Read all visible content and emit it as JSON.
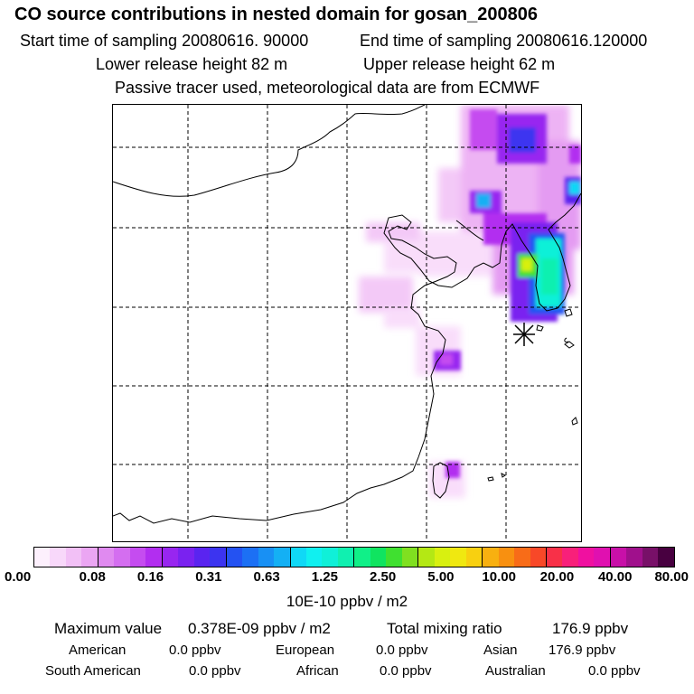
{
  "header": {
    "title": "CO  source contributions in nested domain for gosan_200806",
    "start_sampling": "Start time of sampling 20080616. 90000",
    "end_sampling": "End time of sampling 20080616.120000",
    "lower_release": "Lower release height   82 m",
    "upper_release": "Upper release height   62 m",
    "tracer_note": "Passive tracer used, meteorological data are from ECMWF"
  },
  "colorbar": {
    "colors": [
      "#fdf0fd",
      "#f8d8fa",
      "#f2c0f6",
      "#eba6f3",
      "#e08af0",
      "#d46ef0",
      "#c54cf0",
      "#b22ef0",
      "#9826f0",
      "#7a22f0",
      "#5a24f0",
      "#3c34f0",
      "#2452f2",
      "#1c70f4",
      "#1890f4",
      "#14b0f4",
      "#10d8f6",
      "#10f0f0",
      "#10f0d8",
      "#10f0b0",
      "#10f088",
      "#10e460",
      "#40e030",
      "#80e020",
      "#b4e814",
      "#d8f010",
      "#f0e810",
      "#f8d010",
      "#f8b010",
      "#f89010",
      "#f86c18",
      "#f84828",
      "#f83048",
      "#f8207a",
      "#f010a0",
      "#e010b0",
      "#c810a8",
      "#a0108c",
      "#781068",
      "#480040"
    ],
    "ticks": [
      "0.00",
      "0.08",
      "0.16",
      "0.31",
      "0.63",
      "1.25",
      "2.50",
      "5.00",
      "10.00",
      "20.00",
      "40.00",
      "80.00"
    ],
    "units": "10E-10 ppbv / m2"
  },
  "stats": {
    "maximum_label": "Maximum value",
    "maximum_value": "0.378E-09 ppbv / m2",
    "total_label": "Total mixing ratio",
    "total_value": "176.9 ppbv"
  },
  "regions": [
    {
      "name": "American",
      "value": "0.0 ppbv"
    },
    {
      "name": "European",
      "value": "0.0 ppbv"
    },
    {
      "name": "Asian",
      "value": "176.9 ppbv"
    },
    {
      "name": "South American",
      "value": "0.0 ppbv"
    },
    {
      "name": "African",
      "value": "0.0 ppbv"
    },
    {
      "name": "Australian",
      "value": "0.0 ppbv"
    }
  ],
  "map": {
    "receptor_marker": "gosan-station-star"
  }
}
